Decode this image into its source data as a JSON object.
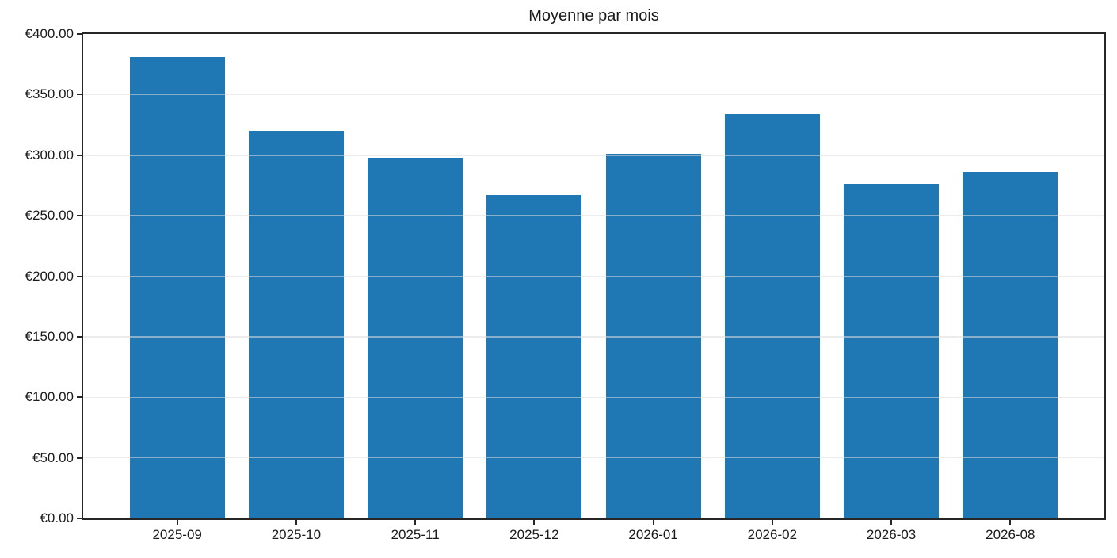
{
  "figure": {
    "background_color": "#ffffff"
  },
  "chart_data": {
    "type": "bar",
    "title": "Moyenne par mois",
    "xlabel": "",
    "ylabel": "",
    "categories": [
      "2025-09",
      "2025-10",
      "2025-11",
      "2025-12",
      "2026-01",
      "2026-02",
      "2026-03",
      "2026-08"
    ],
    "values": [
      381,
      320,
      298,
      267,
      301,
      334,
      276,
      286
    ],
    "currency_prefix": "€",
    "ylim": [
      0,
      400
    ],
    "ytick_step": 50,
    "yticks": [
      {
        "value": 0,
        "label": "€0.00"
      },
      {
        "value": 50,
        "label": "€50.00"
      },
      {
        "value": 100,
        "label": "€100.00"
      },
      {
        "value": 150,
        "label": "€150.00"
      },
      {
        "value": 200,
        "label": "€200.00"
      },
      {
        "value": 250,
        "label": "€250.00"
      },
      {
        "value": 300,
        "label": "€300.00"
      },
      {
        "value": 350,
        "label": "€350.00"
      },
      {
        "value": 400,
        "label": "€400.00"
      }
    ],
    "grid": "horizontal",
    "legend": "none",
    "bar_color": "#1f77b4",
    "axis_color": "#262626",
    "grid_color": "#e8e8e8",
    "text_color": "#1a1a1a",
    "bar_width_units": 0.8
  }
}
